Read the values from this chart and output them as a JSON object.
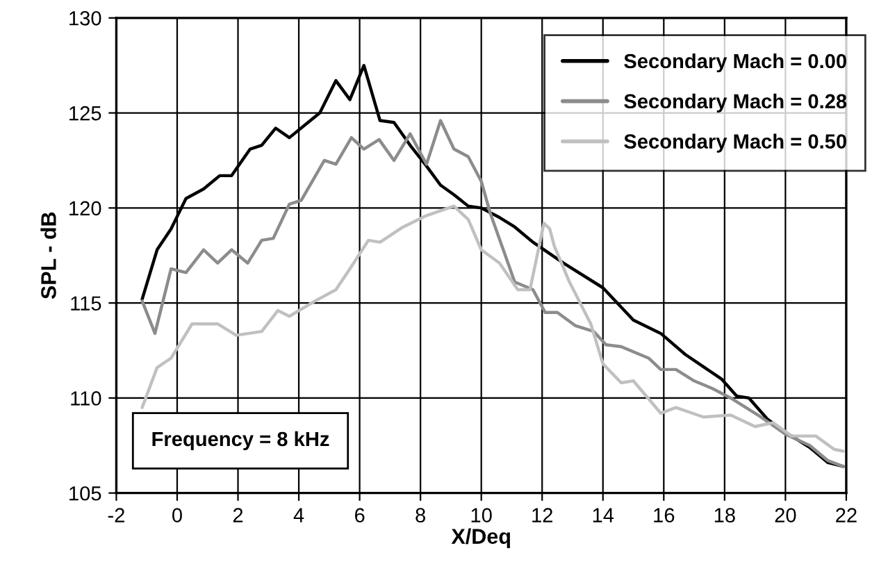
{
  "chart_data": {
    "type": "line",
    "xlabel": "X/Deq",
    "ylabel": "SPL - dB",
    "xlim": [
      -2,
      22
    ],
    "xticks": [
      -2,
      0,
      2,
      4,
      6,
      8,
      10,
      12,
      14,
      16,
      18,
      20,
      22
    ],
    "ylim": [
      105,
      130
    ],
    "yticks": [
      105,
      110,
      115,
      120,
      125,
      130
    ],
    "grid": true,
    "legend": "top right",
    "marker": "none",
    "line_style": "solid",
    "annotations": [
      "Frequency = 8 kHz"
    ],
    "series": [
      {
        "name": "Secondary Mach = 0.00",
        "color": "#000000",
        "x": [
          -1.15,
          -0.66,
          -0.2,
          0.29,
          0.87,
          1.4,
          1.79,
          2.4,
          2.78,
          3.24,
          3.69,
          4.38,
          4.69,
          5.22,
          5.68,
          6.14,
          6.67,
          7.13,
          7.66,
          8.2,
          8.66,
          9.1,
          9.57,
          10.0,
          10.6,
          11.1,
          11.7,
          12.7,
          14.0,
          15.0,
          15.9,
          16.7,
          17.9,
          18.4,
          18.8,
          19.4,
          20.0,
          20.8,
          21.4,
          21.9
        ],
        "values": [
          115.2,
          117.8,
          118.9,
          120.5,
          121.0,
          121.7,
          121.7,
          123.1,
          123.3,
          124.2,
          123.7,
          124.6,
          125.0,
          126.7,
          125.7,
          127.5,
          124.6,
          124.5,
          123.3,
          122.2,
          121.2,
          120.7,
          120.1,
          120.0,
          119.5,
          119.0,
          118.2,
          117.1,
          115.8,
          114.1,
          113.4,
          112.3,
          111.0,
          110.1,
          110.0,
          108.9,
          108.2,
          107.4,
          106.6,
          106.4
        ]
      },
      {
        "name": "Secondary Mach = 0.28",
        "color": "#8c8c8c",
        "x": [
          -1.15,
          -0.73,
          -0.2,
          0.29,
          0.87,
          1.33,
          1.79,
          2.32,
          2.78,
          3.16,
          3.69,
          4.08,
          4.84,
          5.22,
          5.73,
          6.14,
          6.64,
          7.13,
          7.66,
          8.2,
          8.66,
          9.1,
          9.57,
          10.0,
          10.3,
          11.1,
          11.7,
          12.1,
          12.5,
          13.1,
          13.7,
          14.1,
          14.6,
          15.5,
          15.9,
          16.4,
          17.0,
          17.6,
          18.2,
          19.1,
          20.0,
          20.8,
          21.4,
          21.9
        ],
        "values": [
          115.1,
          113.4,
          116.8,
          116.6,
          117.8,
          117.1,
          117.8,
          117.1,
          118.3,
          118.4,
          120.2,
          120.4,
          122.5,
          122.3,
          123.7,
          123.1,
          123.6,
          122.5,
          123.9,
          122.3,
          124.6,
          123.1,
          122.7,
          121.4,
          119.7,
          116.1,
          115.7,
          114.5,
          114.5,
          113.8,
          113.5,
          112.8,
          112.7,
          112.1,
          111.5,
          111.5,
          110.9,
          110.5,
          110.0,
          109.1,
          108.1,
          107.5,
          106.7,
          106.4
        ]
      },
      {
        "name": "Secondary Mach = 0.50",
        "color": "#c0c0c0",
        "x": [
          -1.15,
          -0.66,
          -0.2,
          0.49,
          1.33,
          1.94,
          2.78,
          3.31,
          3.69,
          4.53,
          5.22,
          5.68,
          6.29,
          6.67,
          7.43,
          8.2,
          9.1,
          9.57,
          10.0,
          10.6,
          11.2,
          11.6,
          11.85,
          12.06,
          12.25,
          12.4,
          12.9,
          13.6,
          14.0,
          14.6,
          15.0,
          15.9,
          16.4,
          17.3,
          18.2,
          19.0,
          19.6,
          20.2,
          21.0,
          21.6,
          21.9
        ],
        "values": [
          109.5,
          111.6,
          112.1,
          113.9,
          113.9,
          113.3,
          113.5,
          114.6,
          114.3,
          115.1,
          115.7,
          116.8,
          118.3,
          118.2,
          119.0,
          119.6,
          120.1,
          119.4,
          117.8,
          117.1,
          115.7,
          115.7,
          117.6,
          119.2,
          118.9,
          118.0,
          116.1,
          113.9,
          111.8,
          110.8,
          110.9,
          109.2,
          109.5,
          109.0,
          109.1,
          108.5,
          108.7,
          108.0,
          108.0,
          107.3,
          107.2
        ]
      }
    ]
  }
}
